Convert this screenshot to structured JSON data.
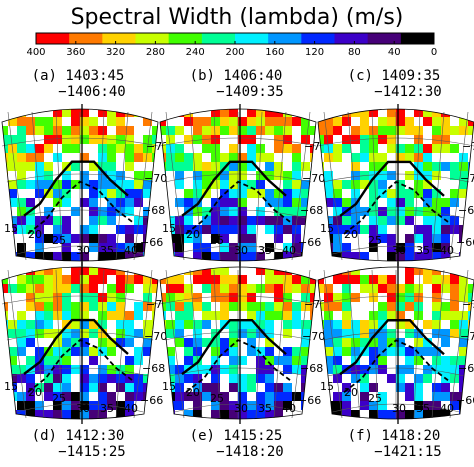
{
  "colorbar": {
    "title": "Spectral Width (lambda) (m/s)",
    "ticks": [
      "400",
      "360",
      "320",
      "280",
      "240",
      "200",
      "160",
      "120",
      "80",
      "40",
      "0"
    ],
    "range": [
      400,
      0
    ],
    "colors": [
      "#ff0000",
      "#ff7a00",
      "#ffd200",
      "#c8ff00",
      "#41ff00",
      "#00ff96",
      "#00f0ff",
      "#0096ff",
      "#0028ff",
      "#3c00c8",
      "#460078",
      "#000000"
    ]
  },
  "chart_data": [
    {
      "type": "heatmap",
      "label_line1": "(a) 1403:45",
      "label_line2": "−1406:40",
      "lat_labels": [
        "−72",
        "−70",
        "−68",
        "−66"
      ],
      "lon_labels": [
        "15",
        "20",
        "25",
        "30",
        "35",
        "40"
      ]
    },
    {
      "type": "heatmap",
      "label_line1": "(b) 1406:40",
      "label_line2": "−1409:35",
      "lat_labels": [
        "−72",
        "−70",
        "−68",
        "−66"
      ],
      "lon_labels": [
        "15",
        "20",
        "25",
        "30",
        "35",
        "40"
      ]
    },
    {
      "type": "heatmap",
      "label_line1": "(c) 1409:35",
      "label_line2": "−1412:30",
      "lat_labels": [
        "−72",
        "−70",
        "−68",
        "−66"
      ],
      "lon_labels": [
        "15",
        "20",
        "25",
        "30",
        "35",
        "40"
      ]
    },
    {
      "type": "heatmap",
      "label_line1": "(d) 1412:30",
      "label_line2": "−1415:25",
      "lat_labels": [
        "−72",
        "−70",
        "−68",
        "−66"
      ],
      "lon_labels": [
        "15",
        "20",
        "25",
        "30",
        "35",
        "40"
      ]
    },
    {
      "type": "heatmap",
      "label_line1": "(e) 1415:25",
      "label_line2": "−1418:20",
      "lat_labels": [
        "−72",
        "−70",
        "−68",
        "−66"
      ],
      "lon_labels": [
        "15",
        "20",
        "25",
        "30",
        "35",
        "40"
      ]
    },
    {
      "type": "heatmap",
      "label_line1": "(f) 1418:20",
      "label_line2": "−1421:15",
      "lat_labels": [
        "−72",
        "−70",
        "−68",
        "−66"
      ],
      "lon_labels": [
        "15",
        "20",
        "25",
        "30",
        "35",
        "40"
      ]
    }
  ]
}
